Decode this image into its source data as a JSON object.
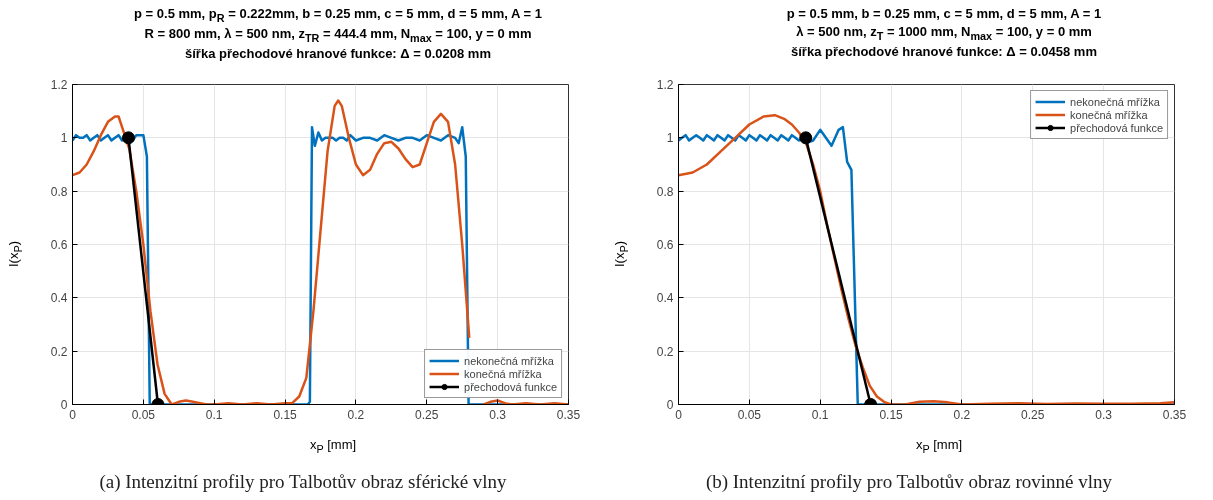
{
  "chart_data": [
    {
      "type": "line",
      "title": "p = 0.5 mm, p$_{R}$ = 0.222mm, b = 0.25 mm, c = 5 mm, d = 5 mm, A = 1\nR = 800 mm, λ = 500 nm, z$_{TR}$ = 444.4 mm, N$_{max}$ = 100, y = 0 mm\nšířka přechodové hranové funkce: Δ = 0.0208 mm",
      "xlabel": "x$_{P}$ [mm]",
      "ylabel": "I(x$_{P}$)",
      "xlim": [
        0,
        0.35
      ],
      "xticks": [
        0,
        0.05,
        0.1,
        0.15,
        0.2,
        0.25,
        0.3,
        0.35
      ],
      "ylim": [
        0,
        1.2
      ],
      "yticks": [
        0,
        0.2,
        0.4,
        0.6,
        0.8,
        1,
        1.2
      ],
      "grid": true,
      "legend": "bottom right",
      "line_style": "solid",
      "annotations": [
        "(a) Intenzitní profily pro Talbotův obraz sférické vlny"
      ],
      "series": [
        {
          "name": "nekonečná mřížka",
          "color": "#0072bd",
          "marker": "none",
          "x": [
            0,
            0.0025,
            0.005,
            0.0075,
            0.01,
            0.0125,
            0.015,
            0.0175,
            0.02,
            0.0225,
            0.025,
            0.0275,
            0.03,
            0.0325,
            0.035,
            0.0375,
            0.04,
            0.0425,
            0.045,
            0.0475,
            0.05,
            0.0525,
            0.0545,
            0.1,
            0.166,
            0.1675,
            0.169,
            0.171,
            0.1735,
            0.176,
            0.1785,
            0.181,
            0.1835,
            0.186,
            0.1885,
            0.191,
            0.1935,
            0.196,
            0.2,
            0.205,
            0.21,
            0.215,
            0.22,
            0.225,
            0.23,
            0.235,
            0.24,
            0.245,
            0.25,
            0.255,
            0.26,
            0.265,
            0.27,
            0.2725,
            0.275,
            0.2775,
            0.2795,
            0.35
          ],
          "values": [
            0.99,
            1.01,
            1.0,
            1.0,
            1.01,
            0.99,
            1.0,
            1.01,
            0.99,
            1.0,
            1.01,
            0.99,
            1.0,
            1.01,
            0.99,
            1.0,
            1.0,
            0.99,
            1.01,
            1.01,
            1.01,
            0.93,
            0,
            0,
            0,
            0.01,
            1.04,
            0.97,
            1.02,
            0.99,
            1.0,
            1.0,
            1.0,
            0.99,
            1.0,
            1.0,
            0.99,
            1.01,
            0.99,
            1.0,
            1.0,
            0.99,
            1.01,
            1.0,
            0.99,
            1.0,
            1.0,
            0.99,
            1.01,
            1.0,
            0.99,
            1.01,
            1.0,
            0.98,
            1.04,
            0.93,
            0,
            0
          ]
        },
        {
          "name": "konečná mřížka",
          "color": "#d95319",
          "marker": "none",
          "x": [
            0,
            0.005,
            0.01,
            0.015,
            0.02,
            0.025,
            0.03,
            0.0325,
            0.035,
            0.04,
            0.045,
            0.05,
            0.055,
            0.06,
            0.065,
            0.07,
            0.075,
            0.08,
            0.085,
            0.09,
            0.095,
            0.1,
            0.11,
            0.12,
            0.13,
            0.14,
            0.15,
            0.155,
            0.16,
            0.165,
            0.17,
            0.175,
            0.18,
            0.185,
            0.1875,
            0.19,
            0.195,
            0.2,
            0.205,
            0.21,
            0.215,
            0.22,
            0.225,
            0.23,
            0.235,
            0.24,
            0.245,
            0.25,
            0.255,
            0.26,
            0.265,
            0.27,
            0.275,
            0.28,
            0.285,
            0.29,
            0.295,
            0.3,
            0.305,
            0.31,
            0.32,
            0.33,
            0.34,
            0.35
          ],
          "values": [
            0.86,
            0.87,
            0.9,
            0.95,
            1.01,
            1.06,
            1.08,
            1.08,
            1.04,
            0.96,
            0.8,
            0.6,
            0.35,
            0.15,
            0.04,
            0,
            0.01,
            0.015,
            0.01,
            0.005,
            0,
            0,
            0.005,
            0,
            0.005,
            0,
            0.005,
            0.005,
            0.03,
            0.1,
            0.35,
            0.65,
            0.95,
            1.12,
            1.14,
            1.12,
            1.0,
            0.9,
            0.86,
            0.88,
            0.94,
            0.98,
            0.985,
            0.96,
            0.92,
            0.89,
            0.9,
            0.98,
            1.06,
            1.09,
            1.06,
            0.9,
            0.6,
            0.25,
            null,
            0,
            0.01,
            0.015,
            0.005,
            0,
            0.005,
            0,
            0.005,
            0
          ]
        },
        {
          "name": "přechodová funkce",
          "color": "#000000",
          "marker": "circle",
          "x": [
            0.0395,
            0.0603
          ],
          "values": [
            1,
            0
          ]
        }
      ]
    },
    {
      "type": "line",
      "title": "p = 0.5 mm, b = 0.25 mm, c = 5 mm, d = 5 mm, A = 1\nλ = 500 nm, z$_{T}$ = 1000 mm, N$_{max}$ = 100, y = 0 mm\nšířka přechodové hranové funkce: Δ = 0.0458 mm",
      "xlabel": "x$_{P}$ [mm]",
      "ylabel": "I(x$_{P}$)",
      "xlim": [
        0,
        0.35
      ],
      "xticks": [
        0,
        0.05,
        0.1,
        0.15,
        0.2,
        0.25,
        0.3,
        0.35
      ],
      "ylim": [
        0,
        1.2
      ],
      "yticks": [
        0,
        0.2,
        0.4,
        0.6,
        0.8,
        1,
        1.2
      ],
      "grid": true,
      "legend": "top right",
      "line_style": "solid",
      "annotations": [
        "(b) Intenzitní profily pro Talbotův obraz rovinné vlny"
      ],
      "series": [
        {
          "name": "nekonečná mřížka",
          "color": "#0072bd",
          "marker": "none",
          "x": [
            0,
            0.0025,
            0.005,
            0.0075,
            0.01,
            0.0125,
            0.015,
            0.0175,
            0.02,
            0.0225,
            0.025,
            0.0275,
            0.03,
            0.0325,
            0.035,
            0.0375,
            0.04,
            0.0425,
            0.045,
            0.0475,
            0.05,
            0.0525,
            0.055,
            0.0575,
            0.06,
            0.0625,
            0.065,
            0.0675,
            0.07,
            0.0725,
            0.075,
            0.0775,
            0.08,
            0.0825,
            0.085,
            0.0875,
            0.09,
            0.095,
            0.1,
            0.108,
            0.113,
            0.116,
            0.119,
            0.122,
            0.1265,
            0.35
          ],
          "values": [
            0.99,
            1.0,
            1.01,
            0.99,
            1.0,
            1.01,
            1.0,
            0.99,
            1.01,
            1.0,
            0.99,
            1.01,
            1.0,
            0.99,
            1.01,
            1.0,
            0.99,
            1.01,
            1.0,
            0.99,
            1.01,
            1.0,
            0.99,
            1.01,
            1.0,
            0.99,
            1.01,
            1.0,
            0.99,
            1.01,
            1.0,
            0.99,
            1.01,
            1.0,
            0.99,
            1.0,
            0.98,
            0.99,
            1.03,
            0.97,
            1.03,
            1.04,
            0.91,
            0.88,
            0,
            0
          ]
        },
        {
          "name": "konečná mřížka",
          "color": "#d95319",
          "marker": "none",
          "x": [
            0,
            0.01,
            0.02,
            0.03,
            0.04,
            0.05,
            0.06,
            0.068,
            0.075,
            0.08,
            0.085,
            0.09,
            0.095,
            0.1,
            0.105,
            0.11,
            0.115,
            0.12,
            0.125,
            0.13,
            0.135,
            0.14,
            0.145,
            0.15,
            0.16,
            0.17,
            0.18,
            0.19,
            0.2,
            0.22,
            0.24,
            0.26,
            0.28,
            0.3,
            0.32,
            0.34,
            0.35
          ],
          "values": [
            0.86,
            0.87,
            0.9,
            0.95,
            1.0,
            1.05,
            1.08,
            1.085,
            1.07,
            1.05,
            1.02,
            0.98,
            0.9,
            0.8,
            0.67,
            0.55,
            0.43,
            0.32,
            0.22,
            0.14,
            0.07,
            0.03,
            0.01,
            0,
            0,
            0.01,
            0.012,
            0.008,
            0,
            0.003,
            0.005,
            0.002,
            0.004,
            0.003,
            0.003,
            0.005,
            0.008
          ]
        },
        {
          "name": "přechodová funkce",
          "color": "#000000",
          "marker": "circle",
          "x": [
            0.0898,
            0.1356
          ],
          "values": [
            1,
            0
          ]
        }
      ]
    }
  ]
}
